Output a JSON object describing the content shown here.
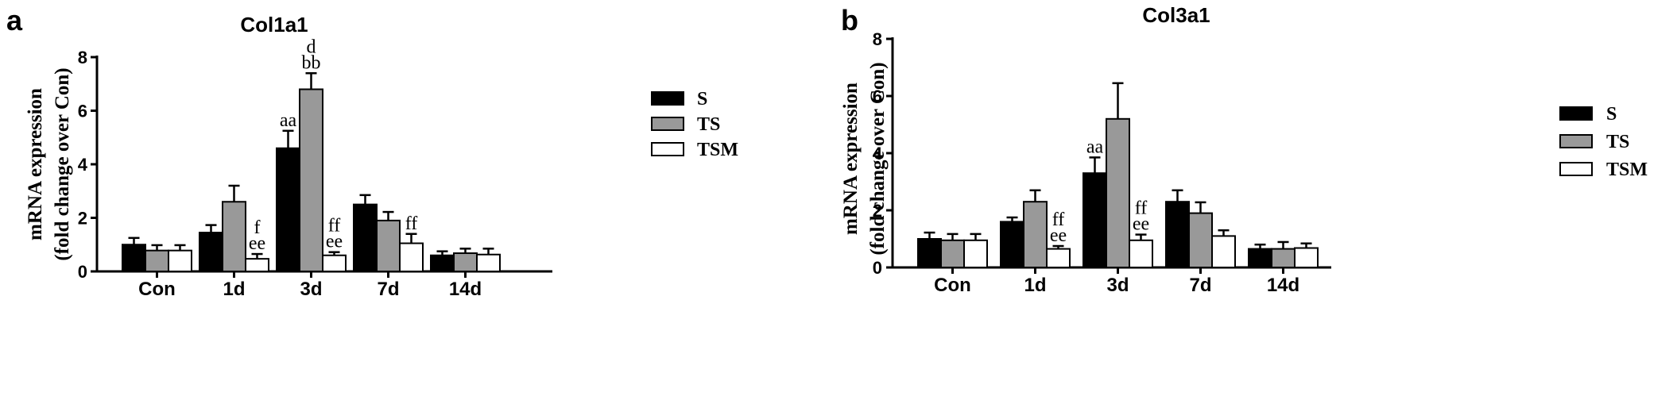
{
  "panels": [
    {
      "letter": "a",
      "chart_data": {
        "type": "bar",
        "title": "Col1a1",
        "ylabel_line1": "mRNA expression",
        "ylabel_line2": "(fold change over Con)",
        "ylim": [
          0,
          8
        ],
        "yticks": [
          "0",
          "2",
          "4",
          "6",
          "8"
        ],
        "categories": [
          "Con",
          "1d",
          "3d",
          "7d",
          "14d"
        ],
        "legend_position": "right",
        "series": [
          {
            "name": "S",
            "color": "#000000",
            "values": [
              1.0,
              1.45,
              4.6,
              2.5,
              0.6
            ],
            "errors": [
              0.25,
              0.28,
              0.65,
              0.35,
              0.15
            ]
          },
          {
            "name": "TS",
            "color": "#999999",
            "values": [
              0.78,
              2.6,
              6.8,
              1.9,
              0.68
            ],
            "errors": [
              0.2,
              0.6,
              0.6,
              0.32,
              0.17
            ]
          },
          {
            "name": "TSM",
            "color": "#ffffff",
            "values": [
              0.78,
              0.47,
              0.6,
              1.05,
              0.63
            ],
            "errors": [
              0.2,
              0.18,
              0.12,
              0.35,
              0.22
            ]
          }
        ],
        "annotations": [
          {
            "category": 1,
            "series": 2,
            "lines": [
              "f",
              "ee"
            ]
          },
          {
            "category": 2,
            "series": 0,
            "lines": [
              "aa"
            ]
          },
          {
            "category": 2,
            "series": 1,
            "lines": [
              "d",
              "bb"
            ]
          },
          {
            "category": 2,
            "series": 2,
            "lines": [
              "ff",
              "ee"
            ]
          },
          {
            "category": 3,
            "series": 2,
            "lines": [
              "ff"
            ]
          }
        ]
      }
    },
    {
      "letter": "b",
      "chart_data": {
        "type": "bar",
        "title": "Col3a1",
        "ylabel_line1": "mRNA expression",
        "ylabel_line2": "(fold change over Con)",
        "ylim": [
          0,
          8
        ],
        "yticks": [
          "0",
          "2",
          "4",
          "6",
          "8"
        ],
        "categories": [
          "Con",
          "1d",
          "3d",
          "7d",
          "14d"
        ],
        "legend_position": "right",
        "series": [
          {
            "name": "S",
            "color": "#000000",
            "values": [
              1.0,
              1.6,
              3.3,
              2.3,
              0.65
            ],
            "errors": [
              0.22,
              0.15,
              0.55,
              0.4,
              0.15
            ]
          },
          {
            "name": "TS",
            "color": "#999999",
            "values": [
              0.95,
              2.3,
              5.2,
              1.9,
              0.65
            ],
            "errors": [
              0.22,
              0.4,
              1.25,
              0.38,
              0.24
            ]
          },
          {
            "name": "TSM",
            "color": "#ffffff",
            "values": [
              0.95,
              0.65,
              0.95,
              1.1,
              0.68
            ],
            "errors": [
              0.22,
              0.1,
              0.2,
              0.2,
              0.16
            ]
          }
        ],
        "annotations": [
          {
            "category": 1,
            "series": 2,
            "lines": [
              "ff",
              "ee"
            ]
          },
          {
            "category": 2,
            "series": 0,
            "lines": [
              "aa"
            ]
          },
          {
            "category": 2,
            "series": 2,
            "lines": [
              "ff",
              "ee"
            ]
          }
        ]
      }
    }
  ]
}
